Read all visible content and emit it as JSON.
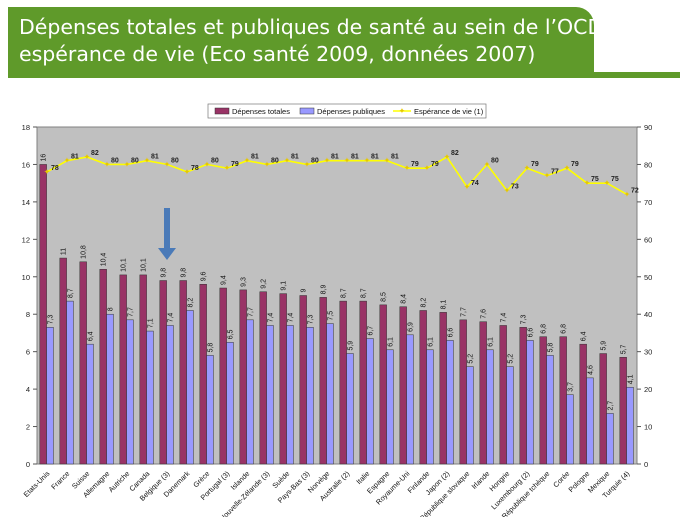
{
  "title": {
    "line1": "Dépenses totales et publiques de santé au sein de l’OCDE et",
    "line2": "espérance de vie (Eco santé 2009, données 2007)"
  },
  "colors": {
    "title_bg": "#5f9a2a",
    "plot_bg": "#c0c0c0",
    "bar_total": "#993366",
    "bar_public": "#9999ff",
    "life_line": "#ffff00",
    "arrow": "#4a7ab8"
  },
  "chart_data": {
    "type": "bar",
    "categories": [
      "Etats-Unis",
      "France",
      "Suisse",
      "Allemagne",
      "Autriche",
      "Canada",
      "Belgique (3)",
      "Danemark",
      "Grèce",
      "Portugal (3)",
      "Islande",
      "Nouvelle-Zélande (3)",
      "Suède",
      "Pays-Bas (3)",
      "Norvège",
      "Australie (2)",
      "Italie",
      "Espagne",
      "Royaume-Uni",
      "Finlande",
      "Japon (2)",
      "République slovaque",
      "Irlande",
      "Hongrie",
      "Luxembourg (2)",
      "République tchèque",
      "Corée",
      "Pologne",
      "Mexique",
      "Turquie (4)"
    ],
    "series": [
      {
        "name": "Dépenses totales",
        "axis": "left",
        "values": [
          16,
          11,
          10.8,
          10.4,
          10.1,
          10.1,
          9.8,
          9.8,
          9.6,
          9.4,
          9.3,
          9.2,
          9.1,
          9,
          8.9,
          8.7,
          8.7,
          8.5,
          8.4,
          8.2,
          8.1,
          7.7,
          7.6,
          7.4,
          7.3,
          6.8,
          6.8,
          6.4,
          5.9,
          5.7
        ]
      },
      {
        "name": "Dépenses publiques",
        "axis": "left",
        "values": [
          7.3,
          8.7,
          6.4,
          8,
          7.7,
          7.1,
          7.4,
          8.2,
          5.8,
          6.5,
          7.7,
          7.4,
          7.4,
          7.3,
          7.5,
          5.9,
          6.7,
          6.1,
          6.9,
          6.1,
          6.6,
          5.2,
          6.1,
          5.2,
          6.6,
          5.8,
          3.7,
          4.6,
          2.7,
          4.1
        ]
      },
      {
        "name": "Espérance de vie (1)",
        "axis": "right",
        "type": "line",
        "values": [
          78,
          81,
          82,
          80,
          80,
          81,
          80,
          78,
          80,
          79,
          81,
          80,
          81,
          80,
          81,
          81,
          81,
          81,
          79,
          79,
          82,
          74,
          80,
          73,
          79,
          77,
          79,
          75,
          75,
          72
        ]
      }
    ],
    "left_axis": {
      "ylim": [
        0,
        18
      ],
      "ticks": [
        "0",
        "2",
        "4",
        "6",
        "8",
        "10",
        "12",
        "14",
        "16",
        "18"
      ]
    },
    "right_axis": {
      "ylim": [
        0,
        90
      ],
      "ticks": [
        "0",
        "10",
        "20",
        "30",
        "40",
        "50",
        "60",
        "70",
        "80",
        "90"
      ]
    },
    "labels": {
      "total": [
        "16",
        "11",
        "10,8",
        "10,4",
        "10,1",
        "10,1",
        "9,8",
        "9,8",
        "9,6",
        "9,4",
        "9,3",
        "9,2",
        "9,1",
        "9",
        "8,9",
        "8,7",
        "8,7",
        "8,5",
        "8,4",
        "8,2",
        "8,1",
        "7,7",
        "7,6",
        "7,4",
        "7,3",
        "6,8",
        "6,8",
        "6,4",
        "5,9",
        "5,7"
      ],
      "public": [
        "7,3",
        "8,7",
        "6,4",
        "8",
        "7,7",
        "7,1",
        "7,4",
        "8,2",
        "5,8",
        "6,5",
        "7,7",
        "7,4",
        "7,4",
        "7,3",
        "7,5",
        "5,9",
        "6,7",
        "6,1",
        "6,9",
        "6,1",
        "6,6",
        "5,2",
        "6,1",
        "5,2",
        "6,6",
        "5,8",
        "3,7",
        "4,6",
        "2,7",
        "4,1"
      ],
      "life": [
        "78",
        "81",
        "82",
        "80",
        "80",
        "81",
        "80",
        "78",
        "80",
        "79",
        "81",
        "80",
        "81",
        "80",
        "81",
        "81",
        "81",
        "81",
        "79",
        "79",
        "82",
        "74",
        "80",
        "73",
        "79",
        "77",
        "79",
        "75",
        "75",
        "72"
      ]
    },
    "highlight_index": 6,
    "grid": false,
    "legend_position": "top"
  }
}
